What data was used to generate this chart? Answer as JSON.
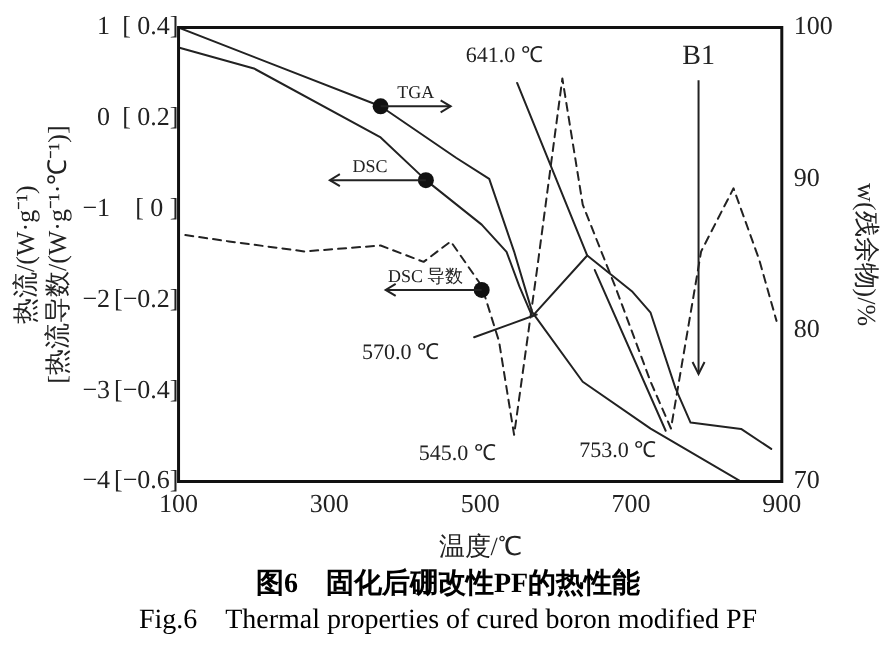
{
  "chart_data": {
    "type": "line",
    "title": "图6　固化后硼改性PF的热性能",
    "subtitle": "Fig.6　Thermal properties of cured boron modified PF",
    "xlabel": "温度/℃",
    "ylabel": "热流/(W·g⁻¹)",
    "y3label": "[热流导数/(W·g⁻¹·℃⁻¹)]",
    "y2label": "w(残余物)/%",
    "xlim": [
      100,
      900
    ],
    "xticks": [
      100,
      300,
      500,
      700,
      900
    ],
    "ylim": [
      -4,
      1
    ],
    "yticks": [
      1,
      0,
      -1,
      -2,
      -3,
      -4
    ],
    "y3lim": [
      -0.6,
      0.4
    ],
    "y3ticks": [
      {
        "value": 0.4,
        "label": "[ 0.4]"
      },
      {
        "value": 0.2,
        "label": "[ 0.2]"
      },
      {
        "value": 0,
        "label": "[ 0 ]"
      },
      {
        "value": -0.2,
        "label": "[−0.2]"
      },
      {
        "value": -0.4,
        "label": "[−0.4]"
      },
      {
        "value": -0.6,
        "label": "[−0.6]"
      }
    ],
    "y2lim": [
      70,
      100
    ],
    "y2ticks": [
      70,
      80,
      90,
      100
    ],
    "grid": false,
    "legend": false,
    "marker": "none",
    "series": [
      {
        "name": "TGA",
        "color": "#222222",
        "axis": "y2",
        "x": [
          100,
          368,
          468,
          512,
          545,
          569,
          636,
          726,
          846
        ],
        "values": [
          100,
          94.8,
          91.4,
          90.0,
          85.2,
          81.2,
          76.6,
          73.5,
          70.0
        ]
      },
      {
        "name": "DSC",
        "color": "#222222",
        "x": [
          100,
          200,
          368,
          428,
          502,
          535,
          552,
          569,
          642,
          702,
          726,
          759,
          779,
          846,
          886
        ],
        "values": [
          0.78,
          0.55,
          -0.21,
          -0.68,
          -1.17,
          -1.47,
          -1.85,
          -2.18,
          -1.51,
          -1.91,
          -2.14,
          -2.97,
          -3.35,
          -3.42,
          -3.64
        ]
      },
      {
        "name": "DSC 导数",
        "color": "#222222",
        "axis": "y3",
        "line_style": "dashed",
        "x": [
          109,
          167,
          267,
          368,
          425,
          461,
          502,
          525,
          545,
          575,
          609,
          636,
          679,
          726,
          753,
          793,
          836,
          870,
          893
        ],
        "values": [
          -0.057,
          -0.071,
          -0.093,
          -0.08,
          -0.116,
          -0.071,
          -0.169,
          -0.291,
          -0.497,
          -0.138,
          0.288,
          0.01,
          -0.17,
          -0.38,
          -0.483,
          -0.093,
          0.046,
          -0.111,
          -0.246
        ]
      },
      {
        "color": "#222222",
        "x": [
          549,
          642
        ],
        "values": [
          0.39,
          -1.51
        ]
      },
      {
        "color": "#222222",
        "x": [
          492,
          575
        ],
        "values": [
          -2.41,
          -2.16
        ]
      },
      {
        "color": "#222222",
        "x": [
          652,
          746
        ],
        "values": [
          -1.67,
          -3.44
        ]
      }
    ],
    "annotations": [
      "641.0 ℃",
      "570.0 ℃",
      "545.0 ℃",
      "753.0 ℃",
      "B1"
    ]
  }
}
